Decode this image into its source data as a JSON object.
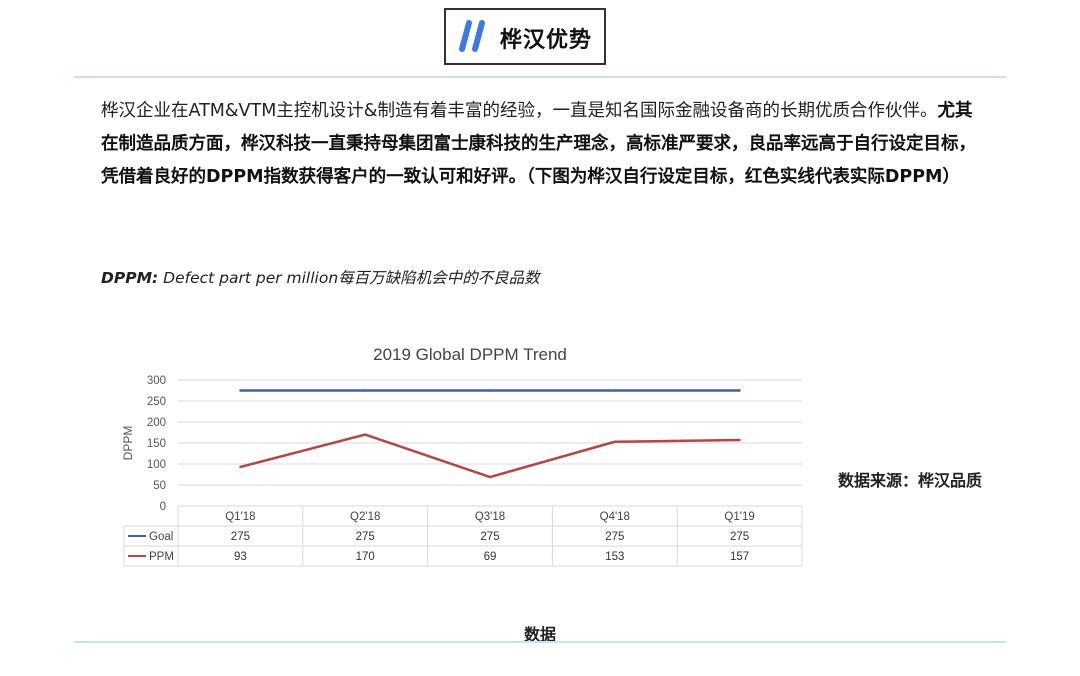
{
  "header": {
    "title": "桦汉优势"
  },
  "intro": {
    "p1_normal": "桦汉企业在ATM&VTM主控机设计&制造有着丰富的经验，一直是知名国际金融设备商的长期优质合作伙伴。",
    "p1_bold": "尤其在制造品质方面，桦汉科技一直秉持母集团富士康科技的生产理念，高标准严要求，良品率远高于自行设定目标，凭借着良好的DPPM指数获得客户的一致认可和好评。（下图为桦汉自行设定目标，红色实线代表实际DPPM）"
  },
  "definition": {
    "abbr": "DPPM:",
    "text": " Defect part per million每百万缺陷机会中的不良品数"
  },
  "source": "数据来源：桦汉品质",
  "caption": "数据",
  "colors": {
    "goal": "#3a63a8",
    "ppm": "#b34646",
    "accent": "#3a79e6",
    "divider": "#cfdff2"
  },
  "chart_data": {
    "type": "line",
    "title": "2019 Global DPPM Trend",
    "ylabel": "DPPM",
    "xlabel": "",
    "ylim": [
      0,
      300
    ],
    "yticks": [
      0,
      50,
      100,
      150,
      200,
      250,
      300
    ],
    "grid": true,
    "legend": "data-table",
    "categories": [
      "Q1'18",
      "Q2'18",
      "Q3'18",
      "Q4'18",
      "Q1'19"
    ],
    "series": [
      {
        "name": "Goal",
        "values": [
          275,
          275,
          275,
          275,
          275
        ],
        "color": "#3a63a8"
      },
      {
        "name": "PPM",
        "values": [
          93,
          170,
          69,
          153,
          157
        ],
        "color": "#b34646"
      }
    ]
  }
}
